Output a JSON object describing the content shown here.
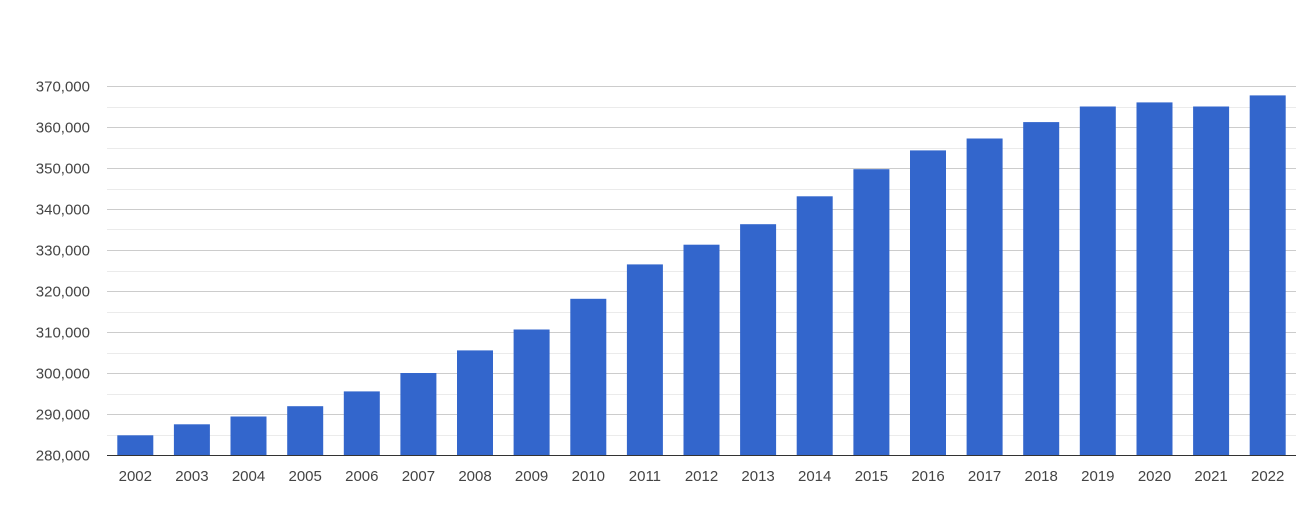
{
  "chart_data": {
    "type": "bar",
    "title": "",
    "xlabel": "",
    "ylabel": "",
    "categories": [
      "2002",
      "2003",
      "2004",
      "2005",
      "2006",
      "2007",
      "2008",
      "2009",
      "2010",
      "2011",
      "2012",
      "2013",
      "2014",
      "2015",
      "2016",
      "2017",
      "2018",
      "2019",
      "2020",
      "2021",
      "2022"
    ],
    "values": [
      284800,
      287500,
      289400,
      291900,
      295500,
      300000,
      305500,
      310600,
      318100,
      326500,
      331300,
      336300,
      343100,
      349700,
      354300,
      357200,
      361200,
      365000,
      366000,
      365000,
      367700
    ],
    "ylim": [
      280000,
      370000
    ],
    "yticks": [
      280000,
      290000,
      300000,
      310000,
      320000,
      330000,
      340000,
      350000,
      360000,
      370000
    ],
    "ytick_labels": [
      "280,000",
      "290,000",
      "300,000",
      "310,000",
      "320,000",
      "330,000",
      "340,000",
      "350,000",
      "360,000",
      "370,000"
    ],
    "grid": true,
    "legend": "none",
    "bar_color": "#3366cc",
    "grid_color": "#cccccc",
    "minor_grid_color": "#ebebeb"
  }
}
